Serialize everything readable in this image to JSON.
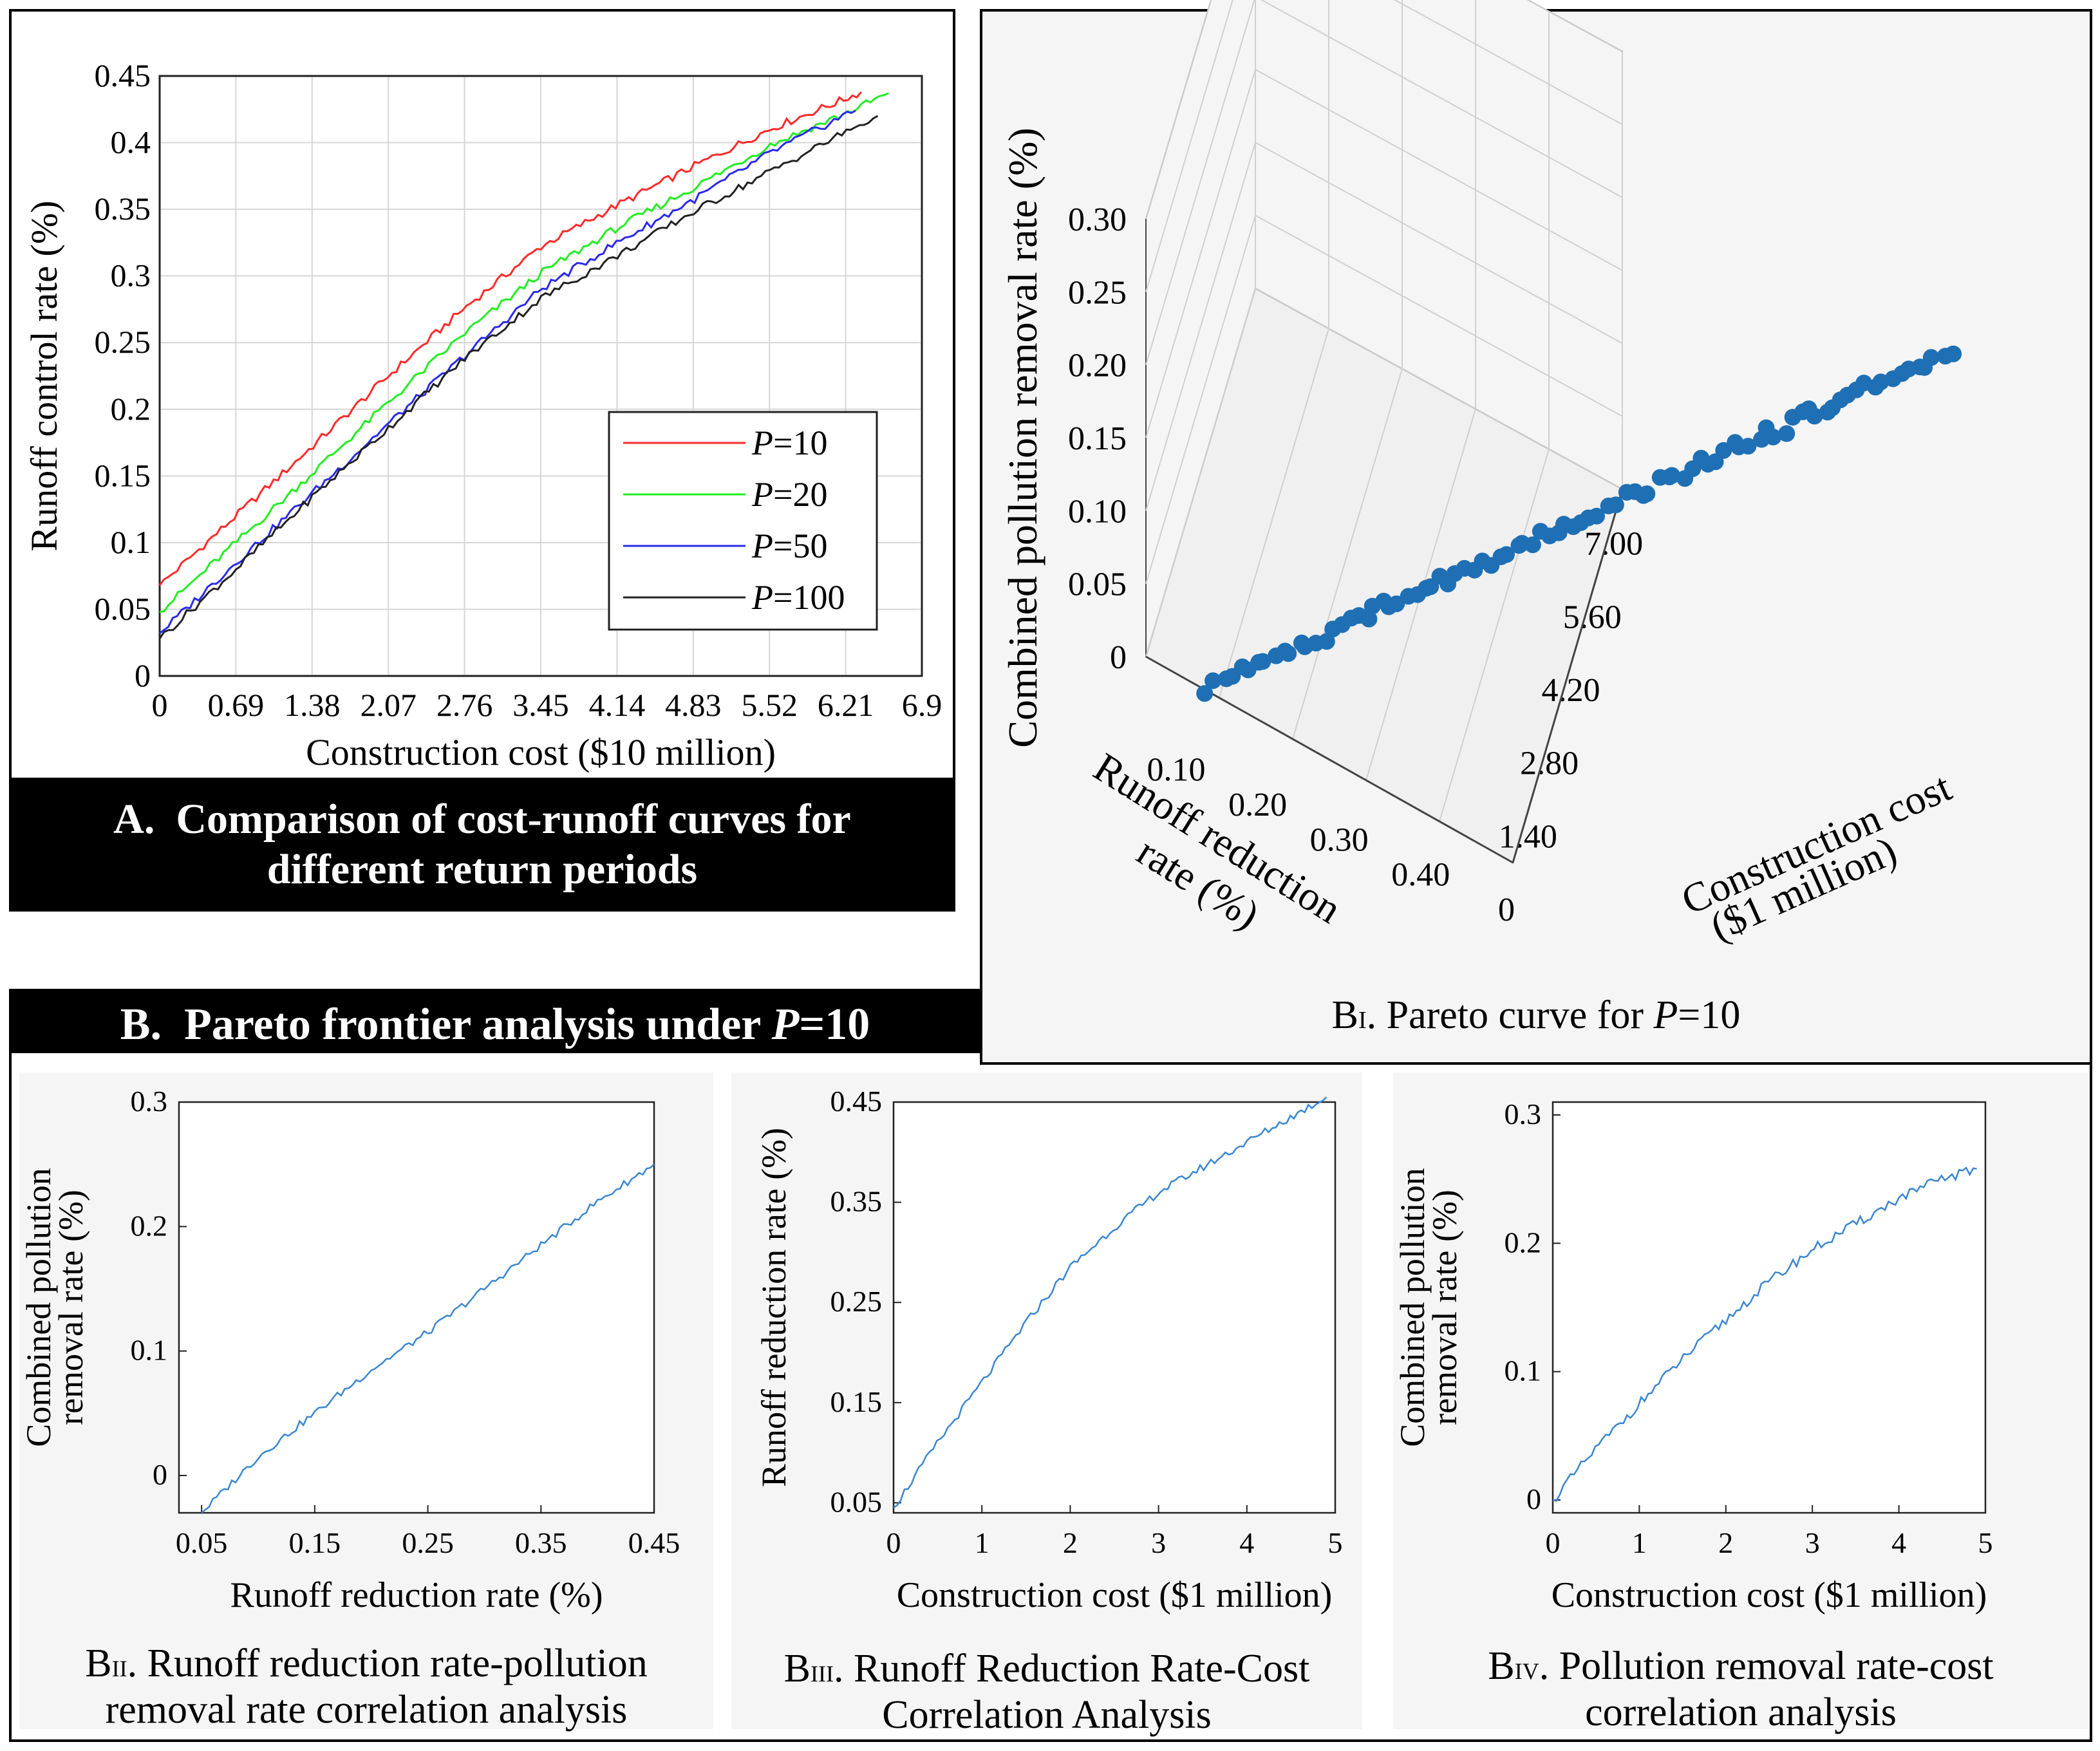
{
  "panel_a": {
    "caption_letter": "A.",
    "caption_line1": "Comparison of cost-runoff curves for",
    "caption_line2": "different return periods"
  },
  "panel_b": {
    "header_letter": "B.",
    "header_text": "Pareto frontier analysis under ",
    "header_var": "P",
    "header_eq": "=10"
  },
  "captions": {
    "b1_prefix": "B",
    "b1_sub": "I",
    "b1_text": ". Pareto curve for ",
    "b1_var": "P",
    "b1_eq": "=10",
    "b2_prefix": "B",
    "b2_sub": "II",
    "b2_line1": ". Runoff reduction rate-pollution",
    "b2_line2": "removal rate correlation analysis",
    "b3_prefix": "B",
    "b3_sub": "III",
    "b3_line1": ". Runoff Reduction Rate-Cost",
    "b3_line2": "Correlation Analysis",
    "b4_prefix": "B",
    "b4_sub": "IV",
    "b4_line1": ". Pollution removal rate-cost",
    "b4_line2": "correlation analysis"
  },
  "colors": {
    "p10": "#ff2a2a",
    "p20": "#22ee22",
    "p50": "#2a2aee",
    "p100": "#222222",
    "scatter": "#1f6fb4",
    "thin_line": "#3a86d0",
    "panel_bg": "#f5f5f5"
  },
  "chart_data": [
    {
      "id": "A",
      "type": "line",
      "xlabel": "Construction cost ($10 million)",
      "ylabel": "Runoff control rate (%)",
      "xlim": [
        0,
        6.9
      ],
      "ylim": [
        0,
        0.45
      ],
      "x_ticks": [
        "0",
        "0.69",
        "1.38",
        "2.07",
        "2.76",
        "3.45",
        "4.14",
        "4.83",
        "5.52",
        "6.21",
        "6.9"
      ],
      "y_ticks": [
        "0",
        "0.05",
        "0.1",
        "0.15",
        "0.2",
        "0.25",
        "0.3",
        "0.35",
        "0.4",
        "0.45"
      ],
      "grid": true,
      "legend_position": "bottom-right",
      "series": [
        {
          "name": "P=10",
          "var": "P",
          "eq": "=10",
          "x": [
            0,
            0.69,
            1.38,
            2.07,
            2.76,
            3.45,
            4.14,
            4.83,
            5.52,
            6.21,
            6.35
          ],
          "y": [
            0.068,
            0.12,
            0.172,
            0.225,
            0.276,
            0.322,
            0.353,
            0.382,
            0.41,
            0.433,
            0.438
          ]
        },
        {
          "name": "P=20",
          "var": "P",
          "eq": "=20",
          "x": [
            0,
            0.69,
            1.38,
            2.07,
            2.76,
            3.45,
            4.14,
            4.83,
            5.52,
            6.21,
            6.6
          ],
          "y": [
            0.048,
            0.1,
            0.152,
            0.205,
            0.257,
            0.302,
            0.336,
            0.366,
            0.398,
            0.422,
            0.437
          ]
        },
        {
          "name": "P=50",
          "var": "P",
          "eq": "=50",
          "x": [
            0,
            0.69,
            1.38,
            2.07,
            2.76,
            3.45,
            4.14,
            4.83,
            5.52,
            6.21,
            6.3
          ],
          "y": [
            0.032,
            0.085,
            0.137,
            0.189,
            0.24,
            0.29,
            0.325,
            0.357,
            0.392,
            0.421,
            0.424
          ]
        },
        {
          "name": "P=100",
          "var": "P",
          "eq": "=100",
          "x": [
            0,
            0.69,
            1.38,
            2.07,
            2.76,
            3.45,
            4.14,
            4.83,
            5.52,
            6.21,
            6.5
          ],
          "y": [
            0.028,
            0.08,
            0.134,
            0.186,
            0.238,
            0.283,
            0.315,
            0.348,
            0.378,
            0.408,
            0.42
          ]
        }
      ]
    },
    {
      "id": "B-I",
      "type": "scatter",
      "xlabel": "Construction cost ($1 million)",
      "xlabel_line1": "Construction cost",
      "xlabel_line2": "($1 million)",
      "ylabel": "Runoff reduction rate (%)",
      "ylabel_line1": "Runoff reduction",
      "ylabel_line2": "rate (%)",
      "zlabel": "Combined pollution removal rate (%)",
      "x_ticks": [
        "0",
        "1.40",
        "2.80",
        "4.20",
        "5.60",
        "7.00"
      ],
      "y_ticks": [
        "0.10",
        "0.20",
        "0.30",
        "0.40"
      ],
      "z_ticks": [
        "0",
        "0.05",
        "0.10",
        "0.15",
        "0.20",
        "0.25",
        "0.30"
      ],
      "zlim": [
        0,
        0.3
      ],
      "points": {
        "cost": [
          0.05,
          0.3,
          0.6,
          0.9,
          1.2,
          1.5,
          1.8,
          2.1,
          2.4,
          2.7,
          3.0,
          3.3,
          3.6,
          3.9,
          4.2,
          4.5,
          4.8,
          5.1,
          5.4,
          5.7,
          6.0,
          6.3
        ],
        "runoff": [
          0.05,
          0.07,
          0.09,
          0.11,
          0.13,
          0.15,
          0.17,
          0.19,
          0.21,
          0.23,
          0.25,
          0.27,
          0.29,
          0.31,
          0.33,
          0.35,
          0.37,
          0.39,
          0.41,
          0.43,
          0.445,
          0.455
        ],
        "pollution": [
          0.0,
          0.01,
          0.02,
          0.03,
          0.04,
          0.05,
          0.06,
          0.07,
          0.08,
          0.09,
          0.1,
          0.11,
          0.12,
          0.13,
          0.14,
          0.15,
          0.16,
          0.17,
          0.18,
          0.19,
          0.2,
          0.21
        ]
      }
    },
    {
      "id": "B-II",
      "type": "line",
      "xlabel": "Runoff reduction rate (%)",
      "ylabel_line1": "Combined pollution",
      "ylabel_line2": "removal rate (%)",
      "xlim": [
        0.03,
        0.45
      ],
      "ylim": [
        -0.03,
        0.3
      ],
      "x_ticks": [
        0.05,
        0.15,
        0.25,
        0.35,
        0.45
      ],
      "x_tick_labels": [
        "0.05",
        "0.15",
        "0.25",
        "0.35",
        "0.45"
      ],
      "y_ticks": [
        0,
        0.1,
        0.2,
        0.3
      ],
      "y_tick_labels": [
        "0",
        "0.1",
        "0.2",
        "0.3"
      ],
      "x": [
        0.05,
        0.1,
        0.15,
        0.2,
        0.25,
        0.3,
        0.35,
        0.4,
        0.45
      ],
      "y": [
        -0.03,
        0.015,
        0.05,
        0.085,
        0.115,
        0.15,
        0.185,
        0.22,
        0.25
      ]
    },
    {
      "id": "B-III",
      "type": "line",
      "xlabel": "Construction cost ($1 million)",
      "ylabel": "Runoff reduction rate (%)",
      "xlim": [
        0,
        5
      ],
      "ylim": [
        0.04,
        0.45
      ],
      "x_ticks": [
        0,
        1,
        2,
        3,
        4,
        5
      ],
      "x_tick_labels": [
        "0",
        "1",
        "2",
        "3",
        "4",
        "5"
      ],
      "y_ticks": [
        0.05,
        0.15,
        0.25,
        0.35,
        0.45
      ],
      "y_tick_labels": [
        "0.05",
        "0.15",
        "0.25",
        "0.35",
        "0.45"
      ],
      "x": [
        0,
        0.5,
        1,
        1.5,
        2,
        2.5,
        3,
        3.5,
        4,
        4.5,
        4.9
      ],
      "y": [
        0.045,
        0.11,
        0.17,
        0.23,
        0.285,
        0.325,
        0.36,
        0.385,
        0.41,
        0.435,
        0.455
      ]
    },
    {
      "id": "B-IV",
      "type": "line",
      "xlabel": "Construction cost ($1 million)",
      "ylabel_line1": "Combined pollution",
      "ylabel_line2": "removal rate (%)",
      "xlim": [
        0,
        5
      ],
      "ylim": [
        -0.01,
        0.31
      ],
      "x_ticks": [
        0,
        1,
        2,
        3,
        4,
        5
      ],
      "x_tick_labels": [
        "0",
        "1",
        "2",
        "3",
        "4",
        "5"
      ],
      "y_ticks": [
        0,
        0.1,
        0.2,
        0.3
      ],
      "y_tick_labels": [
        "0",
        "0.1",
        "0.2",
        "0.3"
      ],
      "x": [
        0,
        0.5,
        1,
        1.5,
        2,
        2.5,
        3,
        3.5,
        4,
        4.5,
        4.9
      ],
      "y": [
        0.0,
        0.04,
        0.075,
        0.11,
        0.14,
        0.17,
        0.195,
        0.215,
        0.235,
        0.25,
        0.258
      ]
    }
  ]
}
